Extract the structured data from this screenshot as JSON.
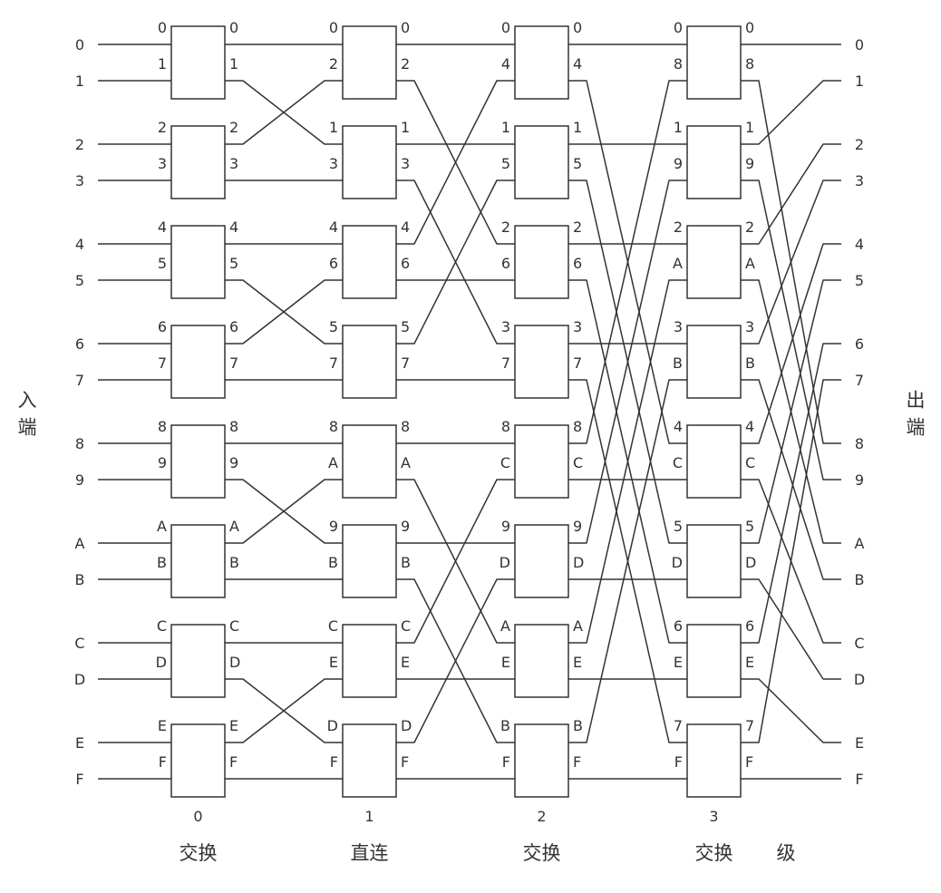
{
  "input_side_label": "入端",
  "output_side_label": "出端",
  "stage_axis_label": "级",
  "inputs": [
    "0",
    "1",
    "2",
    "3",
    "4",
    "5",
    "6",
    "7",
    "8",
    "9",
    "A",
    "B",
    "C",
    "D",
    "E",
    "F"
  ],
  "outputs": [
    "0",
    "1",
    "2",
    "3",
    "4",
    "5",
    "6",
    "7",
    "8",
    "9",
    "A",
    "B",
    "C",
    "D",
    "E",
    "F"
  ],
  "stages": [
    {
      "number": "0",
      "type": "交换",
      "ports": [
        "0",
        "1",
        "2",
        "3",
        "4",
        "5",
        "6",
        "7",
        "8",
        "9",
        "A",
        "B",
        "C",
        "D",
        "E",
        "F"
      ]
    },
    {
      "number": "1",
      "type": "直连",
      "ports": [
        "0",
        "2",
        "1",
        "3",
        "4",
        "6",
        "5",
        "7",
        "8",
        "A",
        "9",
        "B",
        "C",
        "E",
        "D",
        "F"
      ]
    },
    {
      "number": "2",
      "type": "交换",
      "ports": [
        "0",
        "4",
        "1",
        "5",
        "2",
        "6",
        "3",
        "7",
        "8",
        "C",
        "9",
        "D",
        "A",
        "E",
        "B",
        "F"
      ]
    },
    {
      "number": "3",
      "type": "交换",
      "ports": [
        "0",
        "8",
        "1",
        "9",
        "2",
        "A",
        "3",
        "B",
        "4",
        "C",
        "5",
        "D",
        "6",
        "E",
        "7",
        "F"
      ]
    }
  ]
}
